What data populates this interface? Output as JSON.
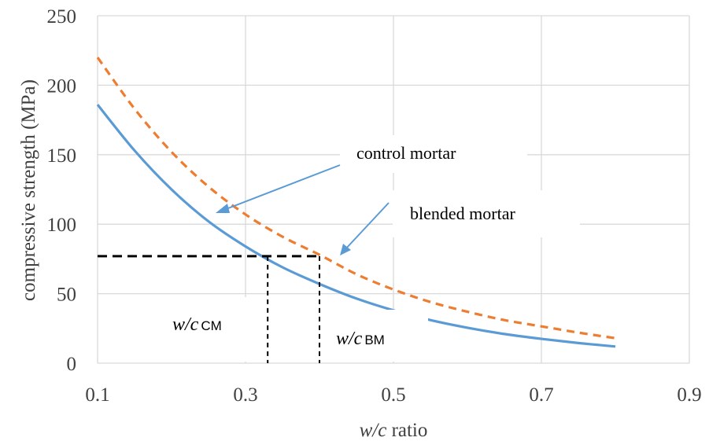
{
  "chart_data": {
    "type": "line",
    "title": "",
    "xlabel": {
      "italic": "w/c",
      "rest": " ratio"
    },
    "ylabel": "compressive strength (MPa)",
    "xlim": [
      0.1,
      0.9
    ],
    "ylim": [
      0,
      250
    ],
    "x_ticks": [
      "0.1",
      "0.3",
      "0.5",
      "0.7",
      "0.9"
    ],
    "y_ticks": [
      "0",
      "50",
      "100",
      "150",
      "200",
      "250"
    ],
    "grid": true,
    "series": [
      {
        "name": "control mortar",
        "color": "#5B9BD5",
        "style": "solid",
        "x": [
          0.1,
          0.15,
          0.2,
          0.25,
          0.3,
          0.35,
          0.4,
          0.45,
          0.5,
          0.55,
          0.6,
          0.65,
          0.7,
          0.75,
          0.8
        ],
        "y": [
          186,
          153,
          125,
          102,
          84,
          69,
          57,
          46.5,
          38,
          31,
          25.5,
          21,
          17.5,
          14.5,
          12
        ]
      },
      {
        "name": "blended mortar",
        "color": "#ED7D31",
        "style": "dashed",
        "x": [
          0.1,
          0.15,
          0.2,
          0.25,
          0.3,
          0.35,
          0.4,
          0.45,
          0.5,
          0.55,
          0.6,
          0.65,
          0.7,
          0.75,
          0.8
        ],
        "y": [
          220,
          183,
          152,
          127,
          107,
          91,
          78,
          64,
          53,
          44,
          37,
          31,
          26.5,
          22,
          18
        ]
      }
    ],
    "reference": {
      "strength": 77,
      "wc_cm": 0.33,
      "wc_bm": 0.4
    },
    "annotations": {
      "control_label": "control mortar",
      "blended_label": "blended mortar",
      "wc_cm_main": "w/c",
      "wc_cm_sub": "CM",
      "wc_bm_main": "w/c",
      "wc_bm_sub": "BM"
    }
  }
}
